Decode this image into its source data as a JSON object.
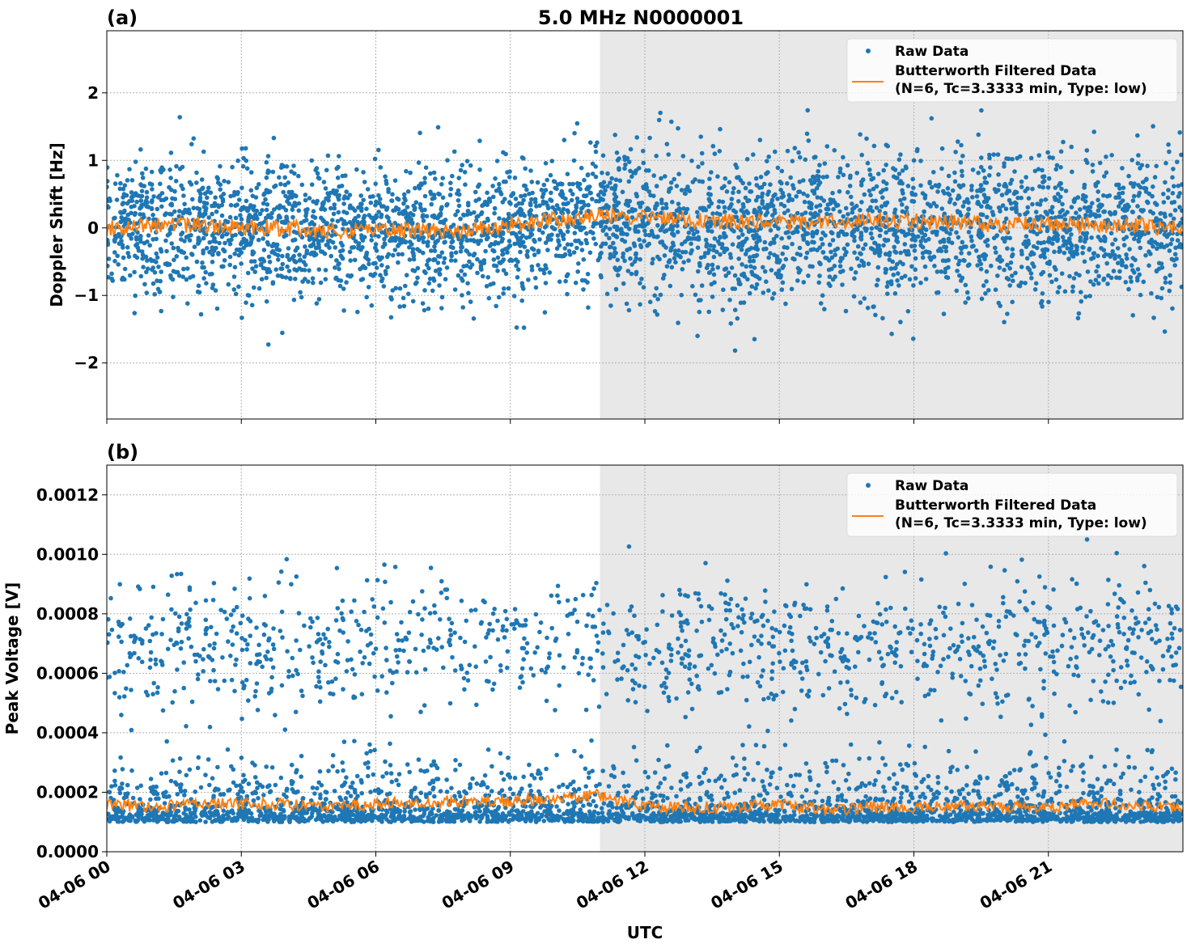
{
  "chart_data": {
    "type": "scatter",
    "title": "5.0 MHz N0000001",
    "xlabel": "UTC",
    "x_unit": "hours since 04-06 00 UTC",
    "xlim": [
      0,
      24
    ],
    "xticks": [
      0,
      3,
      6,
      9,
      12,
      15,
      18,
      21
    ],
    "xtick_labels": [
      "04-06 00",
      "04-06 03",
      "04-06 06",
      "04-06 09",
      "04-06 12",
      "04-06 15",
      "04-06 18",
      "04-06 21"
    ],
    "shaded_span": [
      11.0,
      24
    ],
    "grid": true,
    "legend": {
      "placement": "top-right",
      "entries": [
        "Raw Data",
        "Butterworth Filtered Data\n(N=6, Tc=3.3333 min, Type: low)"
      ],
      "line1": "Butterworth Filtered Data",
      "line2": "(N=6, Tc=3.3333 min, Type: low)"
    },
    "colors": {
      "raw": "#1f77b4",
      "filtered": "#ff7f0e",
      "shade": "#e8e8e8"
    },
    "panels": [
      {
        "label": "(a)",
        "ylabel": "Doppler Shift [Hz]",
        "ylim": [
          -2.83,
          2.92
        ],
        "yticks": [
          -2,
          -1,
          0,
          1,
          2
        ],
        "ytick_labels": [
          "−2",
          "−1",
          "0",
          "1",
          "2"
        ],
        "raw": {
          "points": 4000,
          "seed": 7,
          "hourly_mean": [
            0.0,
            0.0,
            0.02,
            0.0,
            -0.05,
            -0.05,
            -0.05,
            -0.05,
            -0.05,
            0.05,
            0.1,
            0.15,
            0.05,
            0.0,
            -0.02,
            0.0,
            0.05,
            0.0,
            0.0,
            0.0,
            0.0,
            0.0,
            0.0,
            0.0,
            0.0
          ],
          "spread": 0.5
        },
        "filtered": {
          "hourly": [
            0.0,
            0.02,
            0.05,
            0.0,
            0.0,
            -0.05,
            0.0,
            -0.05,
            -0.05,
            0.05,
            0.12,
            0.18,
            0.15,
            0.1,
            0.1,
            0.08,
            0.1,
            0.1,
            0.1,
            0.08,
            0.05,
            0.05,
            0.05,
            0.03,
            0.0
          ],
          "wiggle": 0.12
        }
      },
      {
        "label": "(b)",
        "ylabel": "Peak Voltage [V]",
        "ylim": [
          0,
          0.0013
        ],
        "yticks": [
          0,
          0.0002,
          0.0004,
          0.0006,
          0.0008,
          0.001,
          0.0012
        ],
        "ytick_labels": [
          "0.0000",
          "0.0002",
          "0.0004",
          "0.0006",
          "0.0008",
          "0.0010",
          "0.0012"
        ],
        "raw": {
          "points": 4000,
          "seed": 11,
          "low_band": 0.0001,
          "low_spread": 8e-05,
          "high_band": 0.0007,
          "high_spread": 0.00011,
          "high_fraction": 0.3
        },
        "filtered": {
          "hourly": [
            0.00016,
            0.00015,
            0.00016,
            0.00016,
            0.00016,
            0.00015,
            0.00016,
            0.00017,
            0.00017,
            0.00017,
            0.00018,
            0.00019,
            0.00015,
            0.00015,
            0.00015,
            0.00016,
            0.00014,
            0.00015,
            0.00015,
            0.00015,
            0.00015,
            0.00015,
            0.00016,
            0.00016,
            0.00015
          ],
          "wiggle": 2e-05
        }
      }
    ]
  }
}
